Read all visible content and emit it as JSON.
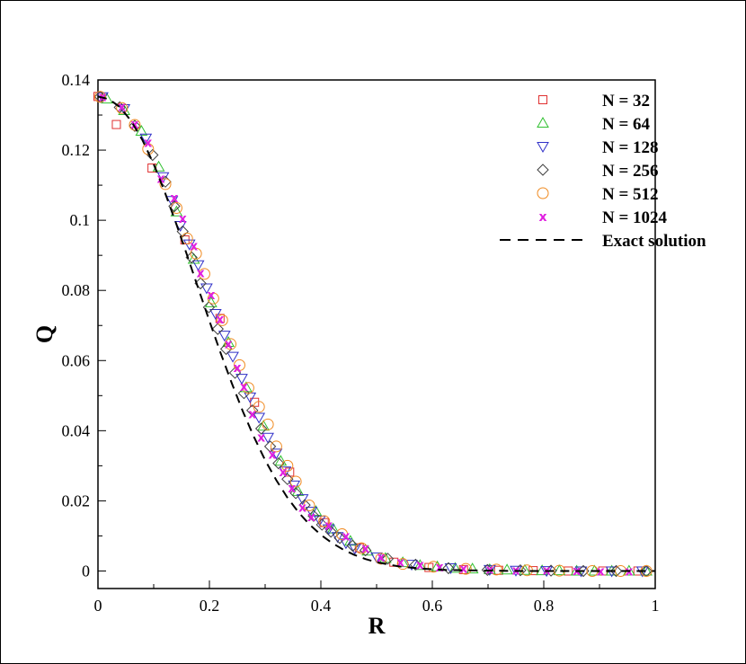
{
  "chart_data": {
    "type": "scatter",
    "xlabel": "R",
    "ylabel": "Q",
    "xlim": [
      0,
      1
    ],
    "ylim": [
      -0.005,
      0.14
    ],
    "xticks": [
      "0",
      "0.2",
      "0.4",
      "0.6",
      "0.8",
      "1"
    ],
    "xtick_values": [
      0,
      0.2,
      0.4,
      0.6,
      0.8,
      1
    ],
    "yticks": [
      "0",
      "0.02",
      "0.04",
      "0.06",
      "0.08",
      "0.1",
      "0.12",
      "0.14"
    ],
    "ytick_values": [
      0,
      0.02,
      0.04,
      0.06,
      0.08,
      0.1,
      0.12,
      0.14
    ],
    "grid": false,
    "legend_position": "top-right",
    "series": [
      {
        "name": "N = 32",
        "marker": "square",
        "color": "#e03030",
        "x": [
          0.0,
          0.033,
          0.097,
          0.156,
          0.219,
          0.281,
          0.344,
          0.406,
          0.469,
          0.531,
          0.594,
          0.656,
          0.719,
          0.781,
          0.844,
          0.906,
          0.969
        ],
        "y": [
          0.1353,
          0.1273,
          0.1149,
          0.0944,
          0.072,
          0.0481,
          0.0282,
          0.0138,
          0.0066,
          0.0025,
          0.001,
          0.0004,
          0.0002,
          0.0001,
          0.0,
          0.0,
          0.0
        ]
      },
      {
        "name": "N = 64",
        "marker": "triangle-up",
        "color": "#30c030",
        "x": [
          0.016,
          0.047,
          0.078,
          0.109,
          0.141,
          0.172,
          0.203,
          0.234,
          0.266,
          0.297,
          0.328,
          0.359,
          0.391,
          0.422,
          0.453,
          0.484,
          0.516,
          0.547,
          0.578,
          0.609,
          0.641,
          0.672,
          0.703,
          0.734,
          0.766,
          0.797,
          0.828,
          0.859,
          0.891,
          0.922,
          0.953,
          0.984
        ],
        "y": [
          0.1346,
          0.1313,
          0.1254,
          0.1152,
          0.1024,
          0.0889,
          0.0765,
          0.0652,
          0.0523,
          0.0413,
          0.0313,
          0.0227,
          0.017,
          0.012,
          0.0085,
          0.0057,
          0.0036,
          0.0024,
          0.0016,
          0.0012,
          0.0008,
          0.0006,
          0.0004,
          0.0003,
          0.0002,
          0.0001,
          0.0001,
          0.0,
          0.0,
          0.0,
          0.0,
          0.0
        ]
      },
      {
        "name": "N = 128",
        "marker": "triangle-down",
        "color": "#3030c8",
        "x": [
          0.008,
          0.047,
          0.086,
          0.117,
          0.133,
          0.148,
          0.164,
          0.18,
          0.195,
          0.211,
          0.227,
          0.242,
          0.258,
          0.273,
          0.289,
          0.305,
          0.32,
          0.336,
          0.352,
          0.367,
          0.383,
          0.398,
          0.414,
          0.43,
          0.445,
          0.461,
          0.5,
          0.563,
          0.633,
          0.703,
          0.75,
          0.805,
          0.867,
          0.922,
          0.977
        ],
        "y": [
          0.1352,
          0.1318,
          0.1234,
          0.1124,
          0.1056,
          0.0985,
          0.0932,
          0.0873,
          0.0807,
          0.0734,
          0.0672,
          0.0612,
          0.0549,
          0.0496,
          0.0438,
          0.0381,
          0.0336,
          0.0285,
          0.0245,
          0.0206,
          0.017,
          0.0145,
          0.012,
          0.0098,
          0.008,
          0.0064,
          0.004,
          0.0019,
          0.0009,
          0.0004,
          0.0002,
          0.0001,
          0.0,
          0.0,
          0.0
        ]
      },
      {
        "name": "N = 256",
        "marker": "diamond",
        "color": "#404040",
        "x": [
          0.004,
          0.039,
          0.066,
          0.098,
          0.121,
          0.137,
          0.152,
          0.168,
          0.184,
          0.199,
          0.215,
          0.23,
          0.246,
          0.262,
          0.277,
          0.293,
          0.309,
          0.324,
          0.34,
          0.355,
          0.371,
          0.387,
          0.402,
          0.418,
          0.434,
          0.457,
          0.48,
          0.52,
          0.57,
          0.629,
          0.699,
          0.758,
          0.813,
          0.871,
          0.93,
          0.984
        ],
        "y": [
          0.1352,
          0.1322,
          0.1269,
          0.1186,
          0.111,
          0.104,
          0.0968,
          0.0894,
          0.082,
          0.0752,
          0.069,
          0.0633,
          0.0565,
          0.0507,
          0.0458,
          0.0406,
          0.0355,
          0.0307,
          0.0262,
          0.0222,
          0.0188,
          0.0157,
          0.0132,
          0.0112,
          0.0094,
          0.0072,
          0.0059,
          0.0035,
          0.0018,
          0.0008,
          0.0003,
          0.0002,
          0.0001,
          0.0,
          0.0,
          0.0
        ]
      },
      {
        "name": "N = 512",
        "marker": "circle",
        "color": "#f08a20",
        "x": [
          0.004,
          0.043,
          0.066,
          0.09,
          0.121,
          0.141,
          0.16,
          0.176,
          0.191,
          0.207,
          0.223,
          0.238,
          0.254,
          0.27,
          0.289,
          0.305,
          0.32,
          0.34,
          0.355,
          0.379,
          0.406,
          0.438,
          0.473,
          0.508,
          0.547,
          0.602,
          0.66,
          0.715,
          0.77,
          0.828,
          0.887,
          0.938,
          0.984
        ],
        "y": [
          0.1352,
          0.132,
          0.1272,
          0.1203,
          0.1103,
          0.1035,
          0.0948,
          0.0905,
          0.0847,
          0.0777,
          0.0715,
          0.0647,
          0.0587,
          0.0522,
          0.0468,
          0.0418,
          0.0355,
          0.03,
          0.0255,
          0.0187,
          0.0142,
          0.0105,
          0.0065,
          0.0035,
          0.002,
          0.0012,
          0.0006,
          0.0004,
          0.0002,
          0.0001,
          0.0,
          0.0,
          0.0
        ]
      },
      {
        "name": "N = 1024",
        "marker": "x",
        "color": "#e020e0",
        "x": [
          0.008,
          0.043,
          0.066,
          0.09,
          0.113,
          0.137,
          0.152,
          0.172,
          0.184,
          0.203,
          0.219,
          0.234,
          0.25,
          0.262,
          0.277,
          0.293,
          0.313,
          0.332,
          0.348,
          0.367,
          0.383,
          0.414,
          0.445,
          0.48,
          0.508,
          0.543,
          0.578,
          0.613,
          0.656,
          0.703,
          0.75,
          0.805,
          0.859,
          0.902,
          0.953
        ],
        "y": [
          0.1352,
          0.1325,
          0.1275,
          0.1222,
          0.112,
          0.1065,
          0.1005,
          0.0927,
          0.085,
          0.0788,
          0.0718,
          0.0648,
          0.058,
          0.0527,
          0.0448,
          0.0382,
          0.0333,
          0.0283,
          0.0237,
          0.0182,
          0.0155,
          0.013,
          0.01,
          0.0065,
          0.004,
          0.0025,
          0.0018,
          0.0012,
          0.0008,
          0.0005,
          0.0003,
          0.0002,
          0.0001,
          0.0,
          0.0
        ]
      }
    ],
    "exact": {
      "name": "Exact solution",
      "style": "dashed",
      "color": "#000000",
      "x": [
        0.0,
        0.02,
        0.04,
        0.06,
        0.08,
        0.1,
        0.12,
        0.14,
        0.16,
        0.18,
        0.2,
        0.22,
        0.24,
        0.26,
        0.28,
        0.3,
        0.32,
        0.34,
        0.36,
        0.38,
        0.4,
        0.42,
        0.44,
        0.46,
        0.48,
        0.5,
        0.54,
        0.58,
        0.62,
        0.66,
        0.7,
        0.76,
        0.82,
        0.88,
        0.94,
        1.0
      ],
      "y": [
        0.1353,
        0.1345,
        0.1322,
        0.1282,
        0.1228,
        0.116,
        0.108,
        0.0992,
        0.09,
        0.0806,
        0.0713,
        0.0622,
        0.0536,
        0.0455,
        0.0382,
        0.0316,
        0.0259,
        0.0209,
        0.0167,
        0.0132,
        0.0103,
        0.008,
        0.0061,
        0.0046,
        0.0034,
        0.0025,
        0.0013,
        0.0007,
        0.0003,
        0.0002,
        0.0001,
        0.0,
        0.0,
        0.0,
        0.0,
        0.0
      ]
    }
  }
}
